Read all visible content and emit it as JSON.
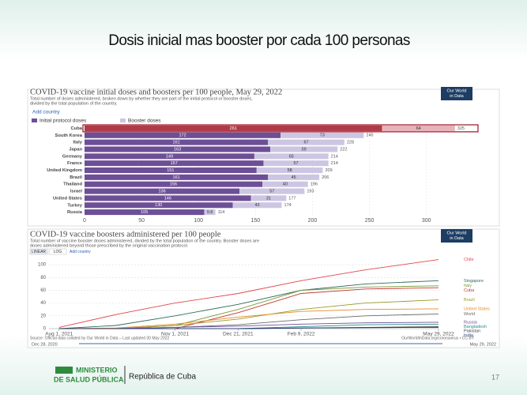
{
  "slide": {
    "title": "Dosis inicial mas booster por cada 100 personas",
    "page_number": "17"
  },
  "footer": {
    "line1": "MINISTERIO",
    "line2": "DE SALUD PÚBLICA",
    "country": "República de Cuba"
  },
  "chart_data": [
    {
      "type": "stacked-barh",
      "title": "COVID-19 vaccine initial doses and boosters per 100 people, May 29, 2022",
      "subtitle": [
        "Total number of doses administered, broken down by whether they are part of the initial protocol or booster doses,",
        "divided by the total population of the country."
      ],
      "logo": [
        "Our World",
        "in Data"
      ],
      "button": "Add country",
      "categories": [
        "Cuba",
        "South Korea",
        "Italy",
        "Japan",
        "Germany",
        "France",
        "United Kingdom",
        "Brazil",
        "Thailand",
        "Israel",
        "United States",
        "Turkey",
        "Russia"
      ],
      "series": [
        {
          "name": "Initial protocol doses",
          "color": "#6d4f97",
          "values": [
            261,
            172,
            161,
            163,
            149,
            157,
            151,
            161,
            156,
            136,
            146,
            130,
            105
          ]
        },
        {
          "name": "Booster doses",
          "color": "#cdc6e3",
          "values": [
            64,
            73,
            67,
            59,
            65,
            57,
            58,
            45,
            40,
            57,
            31,
            43,
            9.8
          ]
        }
      ],
      "totals": [
        325,
        245,
        228,
        222,
        214,
        214,
        209,
        206,
        196,
        193,
        177,
        174,
        114
      ],
      "xlim": [
        0,
        330
      ],
      "xticks": [
        0,
        50,
        100,
        150,
        200,
        250,
        300
      ],
      "grid": true
    },
    {
      "type": "line",
      "title": "COVID-19 vaccine boosters administered per 100 people",
      "subtitle": [
        "Total number of vaccine booster doses administered, divided by the total population of the country. Booster doses are",
        "doses administered beyond those prescribed by the original vaccination protocol."
      ],
      "logo": [
        "Our World",
        "in Data"
      ],
      "buttons": [
        "LINEAR",
        "LOG",
        "Add country"
      ],
      "source": "Source: Official data collated by Our World in Data – Last updated 30 May 2022",
      "credit": "OurWorldInData.org/coronavirus • CC BY",
      "timeline": [
        "Dec 28, 2020",
        "May 29, 2022"
      ],
      "x": [
        "2021-08-01",
        "2021-09-15",
        "2021-11-01",
        "2021-12-21",
        "2022-02-09",
        "2022-04-01",
        "2022-05-29"
      ],
      "series": [
        {
          "name": "Chile",
          "color": "#e0474c",
          "values": [
            2,
            22,
            40,
            55,
            75,
            92,
            108
          ]
        },
        {
          "name": "Singapore",
          "color": "#2e6b57",
          "values": [
            0,
            5,
            20,
            38,
            60,
            70,
            75
          ]
        },
        {
          "name": "Italy",
          "color": "#7a9a3a",
          "values": [
            0,
            0,
            5,
            30,
            60,
            65,
            67
          ]
        },
        {
          "name": "Cuba",
          "color": "#c0392b",
          "values": [
            0,
            0,
            0,
            25,
            55,
            62,
            64
          ]
        },
        {
          "name": "Brazil",
          "color": "#9a9a2a",
          "values": [
            0,
            0,
            5,
            15,
            30,
            40,
            45
          ]
        },
        {
          "name": "United States",
          "color": "#e38b2c",
          "values": [
            0,
            1,
            7,
            18,
            27,
            30,
            31
          ]
        },
        {
          "name": "World",
          "color": "#6b6b6b",
          "values": [
            0,
            0,
            2,
            6,
            14,
            20,
            23
          ]
        },
        {
          "name": "Russia",
          "color": "#6d4f97",
          "values": [
            0,
            0,
            2,
            4,
            7,
            9,
            10
          ]
        },
        {
          "name": "Bangladesh",
          "color": "#2a8c8c",
          "values": [
            0,
            0,
            0,
            0,
            3,
            6,
            7
          ]
        },
        {
          "name": "Pakistan",
          "color": "#444444",
          "values": [
            0,
            0,
            0,
            0,
            1,
            2,
            3
          ]
        },
        {
          "name": "India",
          "color": "#2b3f7a",
          "values": [
            0,
            0,
            0,
            0,
            1,
            1.5,
            2
          ]
        }
      ],
      "xlim": [
        "2021-07-24",
        "2022-05-29"
      ],
      "xticks": [
        {
          "value": "2021-08-01",
          "label": "Aug 1, 2021"
        },
        {
          "value": "2021-11-01",
          "label": "Nov 1, 2021"
        },
        {
          "value": "2021-12-21",
          "label": "Dec 21, 2021"
        },
        {
          "value": "2022-02-09",
          "label": "Feb 9, 2022"
        },
        {
          "value": "2022-05-29",
          "label": "May 29, 2022"
        }
      ],
      "ylim": [
        0,
        110
      ],
      "yticks": [
        0,
        20,
        40,
        60,
        80,
        100
      ],
      "grid": true
    }
  ]
}
